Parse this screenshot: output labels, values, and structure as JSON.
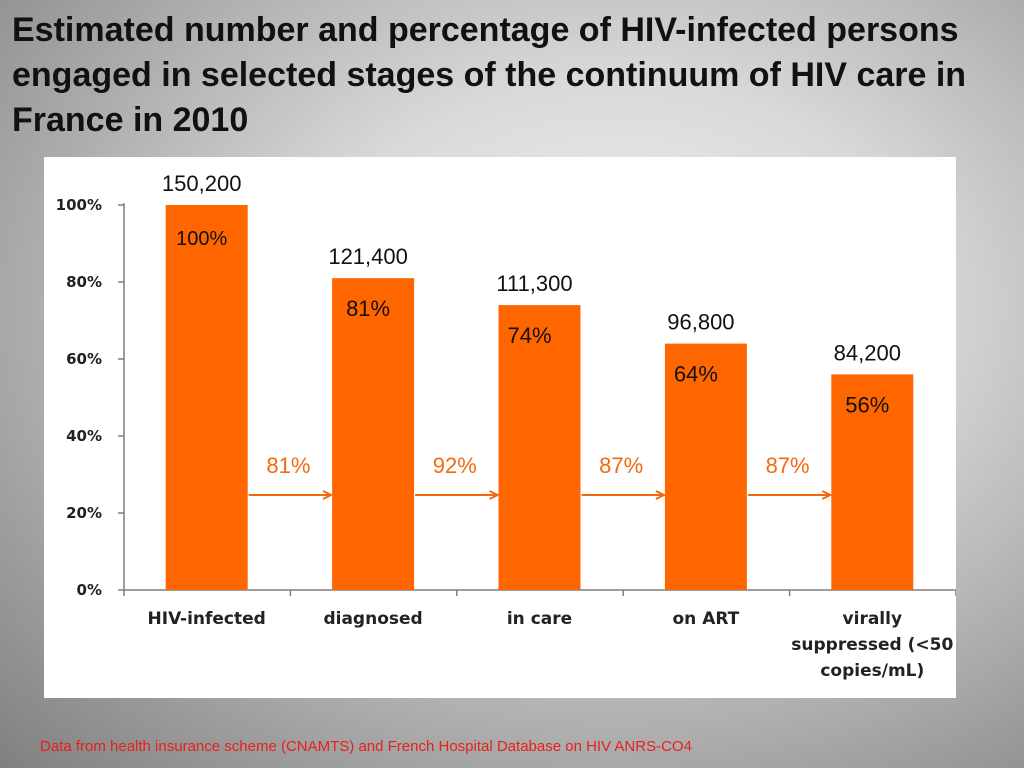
{
  "title": "Estimated number and percentage of HIV-infected persons engaged in selected stages of the continuum of HIV care in France in 2010",
  "footnote": "Data from health insurance scheme (CNAMTS) and French Hospital Database on HIV ANRS-CO4",
  "colors": {
    "bar": "#ff6600",
    "arrow": "#f26a10",
    "footnote": "#e8201a"
  },
  "chart_data": {
    "type": "bar",
    "title": "Estimated number and percentage of HIV-infected persons engaged in selected stages of the continuum of HIV care in France in 2010",
    "categories": [
      "HIV-infected",
      "diagnosed",
      "in care",
      "on ART",
      "virally suppressed (<50 copies/mL)"
    ],
    "category_lines": [
      [
        "HIV-infected"
      ],
      [
        "diagnosed"
      ],
      [
        "in care"
      ],
      [
        "on ART"
      ],
      [
        "virally",
        "suppressed (<50",
        "copies/mL)"
      ]
    ],
    "values": [
      100,
      81,
      74,
      64,
      56
    ],
    "value_labels": [
      "100%",
      "81%",
      "74%",
      "64%",
      "56%"
    ],
    "counts": [
      "150,200",
      "121,400",
      "111,300",
      "96,800",
      "84,200"
    ],
    "stage_conversion": [
      "81%",
      "92%",
      "87%",
      "87%"
    ],
    "ylim": [
      0,
      100
    ],
    "yticks": [
      0,
      20,
      40,
      60,
      80,
      100
    ],
    "ytick_labels": [
      "0%",
      "20%",
      "40%",
      "60%",
      "80%",
      "100%"
    ],
    "xlabel": "",
    "ylabel": "",
    "grid": false,
    "legend": "none"
  }
}
